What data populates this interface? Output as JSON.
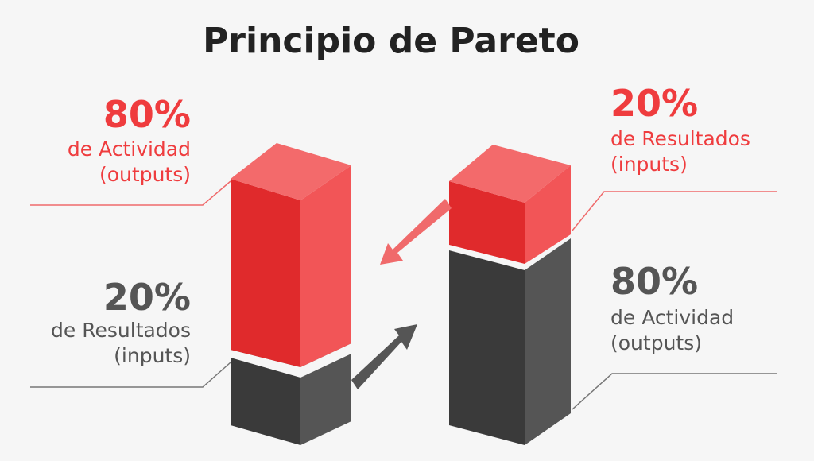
{
  "title": "Principio de Pareto",
  "left": {
    "top": {
      "percent": "80%",
      "line1": "de Actividad",
      "line2": "(outputs)"
    },
    "bottom": {
      "percent": "20%",
      "line1": "de Resultados",
      "line2": "(inputs)"
    }
  },
  "right": {
    "top": {
      "percent": "20%",
      "line1": "de Resultados",
      "line2": "(inputs)"
    },
    "bottom": {
      "percent": "80%",
      "line1": "de Actividad",
      "line2": "(outputs)"
    }
  }
}
